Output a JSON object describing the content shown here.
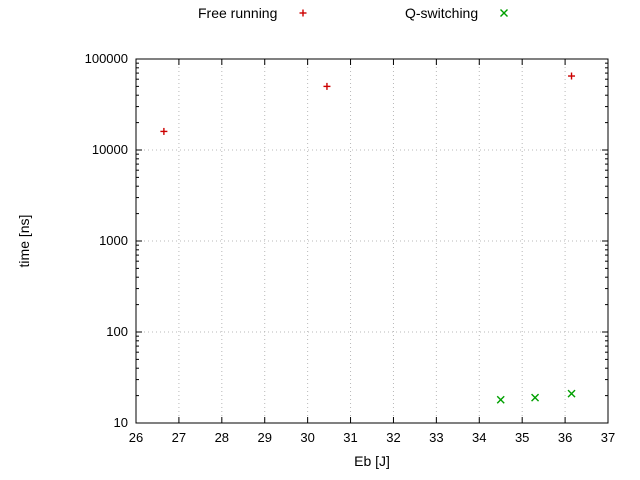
{
  "chart_data": {
    "type": "scatter",
    "title": "",
    "xlabel": "Eb [J]",
    "ylabel": "time [ns]",
    "xlim": [
      26,
      37
    ],
    "ylim": [
      10,
      100000
    ],
    "yscale": "log",
    "x_ticks": [
      26,
      27,
      28,
      29,
      30,
      31,
      32,
      33,
      34,
      35,
      36,
      37
    ],
    "y_ticks": [
      10,
      100,
      1000,
      10000,
      100000
    ],
    "grid": true,
    "legend_position": "top",
    "series": [
      {
        "name": "Free running",
        "marker": "plus",
        "color": "#cc0000",
        "points": [
          [
            26.65,
            16000
          ],
          [
            30.45,
            50000
          ],
          [
            36.15,
            65000
          ]
        ]
      },
      {
        "name": "Q-switching",
        "marker": "cross",
        "color": "#00a000",
        "points": [
          [
            34.5,
            18
          ],
          [
            35.3,
            19
          ],
          [
            36.15,
            21
          ]
        ]
      }
    ]
  }
}
